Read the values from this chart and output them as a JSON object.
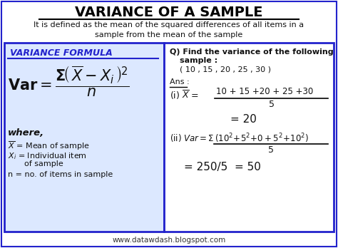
{
  "title": "VARIANCE OF A SAMPLE",
  "subtitle_line1": "It is defined as the mean of the squared differences of all items in a",
  "subtitle_line2": "sample from the mean of the sample",
  "left_box_title": "VARIANCE FORMULA",
  "footer": "www.datawdash.blogspot.com",
  "bg_color": "#ffffff",
  "outer_border_color": "#2222cc",
  "left_bg": "#dce8ff",
  "right_bg": "#ffffff",
  "title_color": "#000000",
  "subtitle_color": "#111111",
  "formula_color": "#111111",
  "footer_color": "#333333",
  "left_title_color": "#2222cc",
  "box_border_color": "#2222cc",
  "figw": 4.74,
  "figh": 3.48,
  "dpi": 100
}
